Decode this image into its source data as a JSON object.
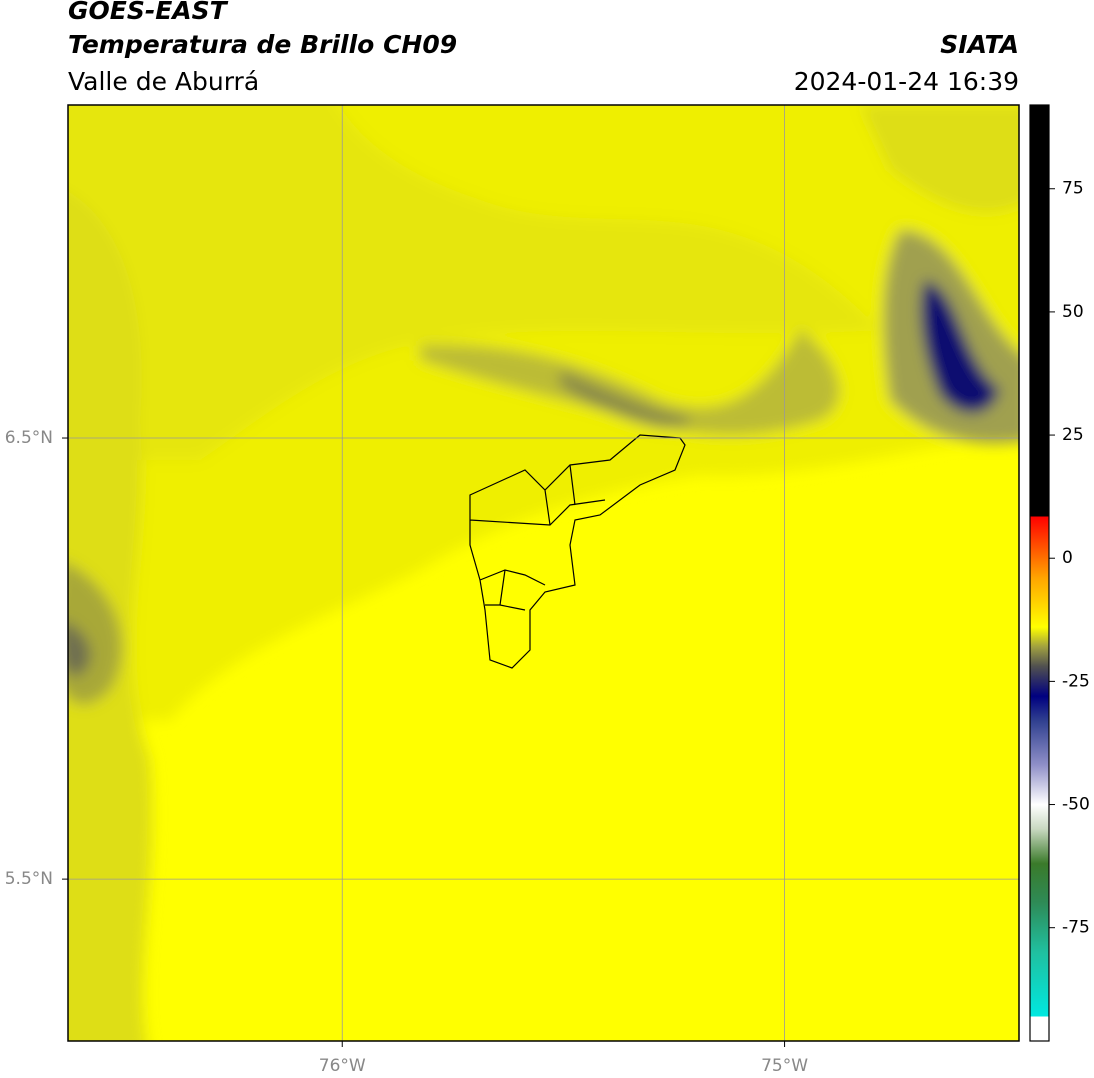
{
  "header": {
    "title": "GOES-EAST",
    "subtitle": "Temperatura de Brillo CH09",
    "region": "Valle de Aburrá",
    "source": "SIATA",
    "timestamp": "2024-01-24 16:39"
  },
  "map": {
    "lonlim": [
      -76.62,
      -74.47
    ],
    "latlim": [
      5.133,
      7.255
    ],
    "lon_ticks": [
      {
        "value": -76,
        "label": "76°W"
      },
      {
        "value": -75,
        "label": "75°W"
      }
    ],
    "lat_ticks": [
      {
        "value": 6.5,
        "label": "6.5°N"
      },
      {
        "value": 5.5,
        "label": "5.5°N"
      }
    ],
    "grid": true
  },
  "colorbar": {
    "lim": [
      -98,
      92
    ],
    "ticks": [
      75,
      50,
      25,
      0,
      -25,
      -50,
      -75
    ],
    "stops": [
      {
        "value": -98,
        "color": "#ffffff"
      },
      {
        "value": -93,
        "color": "#ffffff"
      },
      {
        "value": -93,
        "color": "#00e8e0"
      },
      {
        "value": -80,
        "color": "#20c0a0"
      },
      {
        "value": -70,
        "color": "#2e8b57"
      },
      {
        "value": -62,
        "color": "#3a7a2a"
      },
      {
        "value": -55,
        "color": "#c8d8c0"
      },
      {
        "value": -50,
        "color": "#ffffff"
      },
      {
        "value": -42,
        "color": "#9090c8"
      },
      {
        "value": -33,
        "color": "#304090"
      },
      {
        "value": -28,
        "color": "#000080"
      },
      {
        "value": -22,
        "color": "#505050"
      },
      {
        "value": -18,
        "color": "#a0a040"
      },
      {
        "value": -14,
        "color": "#ffff00"
      },
      {
        "value": -4,
        "color": "#ffa500"
      },
      {
        "value": 8.5,
        "color": "#ff0000"
      },
      {
        "value": 8.5,
        "color": "#000000"
      },
      {
        "value": 92,
        "color": "#000000"
      }
    ]
  }
}
